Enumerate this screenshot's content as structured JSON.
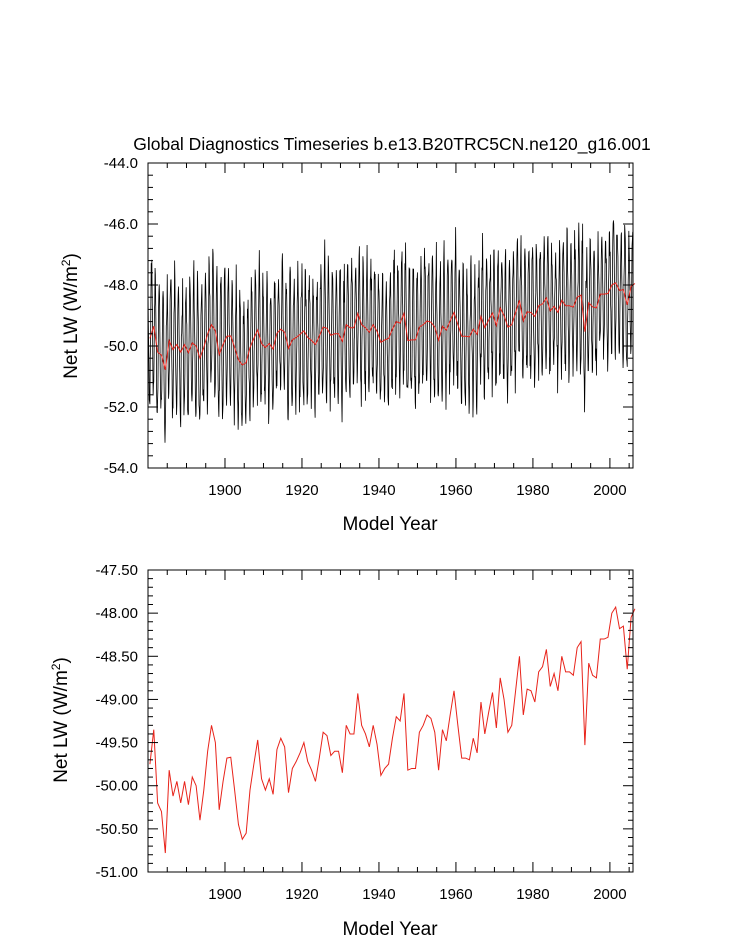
{
  "chart_data": [
    {
      "type": "line",
      "title": "Global Diagnostics Timeseries b.e13.B20TRC5CN.ne120_g16.001",
      "xlabel": "Model Year",
      "ylabel": "Net LW (W/m",
      "ylabel_sup": "2",
      "ylabel_close": ")",
      "xlim": [
        1880,
        2006
      ],
      "ylim": [
        -54.0,
        -44.0
      ],
      "xticks": [
        1900,
        1920,
        1940,
        1960,
        1980,
        2000
      ],
      "xtick_labels": [
        "1900",
        "1920",
        "1940",
        "1960",
        "1980",
        "2000"
      ],
      "yticks": [
        -54.0,
        -52.0,
        -50.0,
        -48.0,
        -46.0,
        -44.0
      ],
      "ytick_labels": [
        "-54.0",
        "-52.0",
        "-50.0",
        "-48.0",
        "-46.0",
        "-44.0"
      ],
      "grid": false,
      "series": [
        {
          "color": "#000000",
          "kind": "monthly",
          "x_start": 1880,
          "x_end": 2006,
          "baseline_start": -50.1,
          "baseline_end": -48.3,
          "amplitude": 2.0
        },
        {
          "color": "#e8231a",
          "kind": "annual",
          "ref": "chart2"
        }
      ]
    },
    {
      "type": "line",
      "xlabel": "Model Year",
      "ylabel": "Net LW (W/m",
      "ylabel_sup": "2",
      "ylabel_close": ")",
      "xlim": [
        1880,
        2006
      ],
      "ylim": [
        -51.0,
        -47.5
      ],
      "xticks": [
        1900,
        1920,
        1940,
        1960,
        1980,
        2000
      ],
      "xtick_labels": [
        "1900",
        "1920",
        "1940",
        "1960",
        "1980",
        "2000"
      ],
      "yticks": [
        -51.0,
        -50.5,
        -50.0,
        -49.5,
        -49.0,
        -48.5,
        -48.0,
        -47.5
      ],
      "ytick_labels": [
        "-51.00",
        "-50.50",
        "-50.00",
        "-49.50",
        "-49.00",
        "-48.50",
        "-48.00",
        "-47.50"
      ],
      "grid": false,
      "series": [
        {
          "color": "#e8231a",
          "x_start": 1880,
          "values": [
            -49.75,
            -49.35,
            -50.2,
            -50.3,
            -50.78,
            -49.82,
            -50.12,
            -49.95,
            -50.2,
            -49.95,
            -50.22,
            -49.9,
            -50.0,
            -50.4,
            -50.05,
            -49.6,
            -49.3,
            -49.5,
            -50.28,
            -49.95,
            -49.68,
            -49.67,
            -50.05,
            -50.45,
            -50.62,
            -50.55,
            -50.05,
            -49.75,
            -49.47,
            -49.92,
            -50.05,
            -49.92,
            -50.1,
            -49.58,
            -49.45,
            -49.55,
            -50.08,
            -49.8,
            -49.72,
            -49.62,
            -49.5,
            -49.72,
            -49.82,
            -49.95,
            -49.68,
            -49.38,
            -49.42,
            -49.65,
            -49.6,
            -49.6,
            -49.85,
            -49.3,
            -49.4,
            -49.4,
            -48.93,
            -49.3,
            -49.4,
            -49.55,
            -49.3,
            -49.52,
            -49.88,
            -49.8,
            -49.75,
            -49.45,
            -49.2,
            -49.25,
            -48.93,
            -49.82,
            -49.8,
            -49.8,
            -49.38,
            -49.3,
            -49.18,
            -49.22,
            -49.38,
            -49.82,
            -49.35,
            -49.48,
            -49.18,
            -48.9,
            -49.3,
            -49.68,
            -49.68,
            -49.7,
            -49.45,
            -49.62,
            -49.03,
            -49.4,
            -49.15,
            -48.92,
            -49.33,
            -48.75,
            -49.0,
            -49.38,
            -49.3,
            -48.9,
            -48.5,
            -49.18,
            -48.88,
            -48.9,
            -49.03,
            -48.68,
            -48.62,
            -48.42,
            -48.85,
            -48.7,
            -48.9,
            -48.5,
            -48.68,
            -48.68,
            -48.72,
            -48.4,
            -48.33,
            -49.53,
            -48.58,
            -48.72,
            -48.75,
            -48.3,
            -48.3,
            -48.28,
            -48.0,
            -47.93,
            -48.18,
            -48.15,
            -48.65,
            -48.05,
            -47.95
          ]
        }
      ]
    }
  ]
}
